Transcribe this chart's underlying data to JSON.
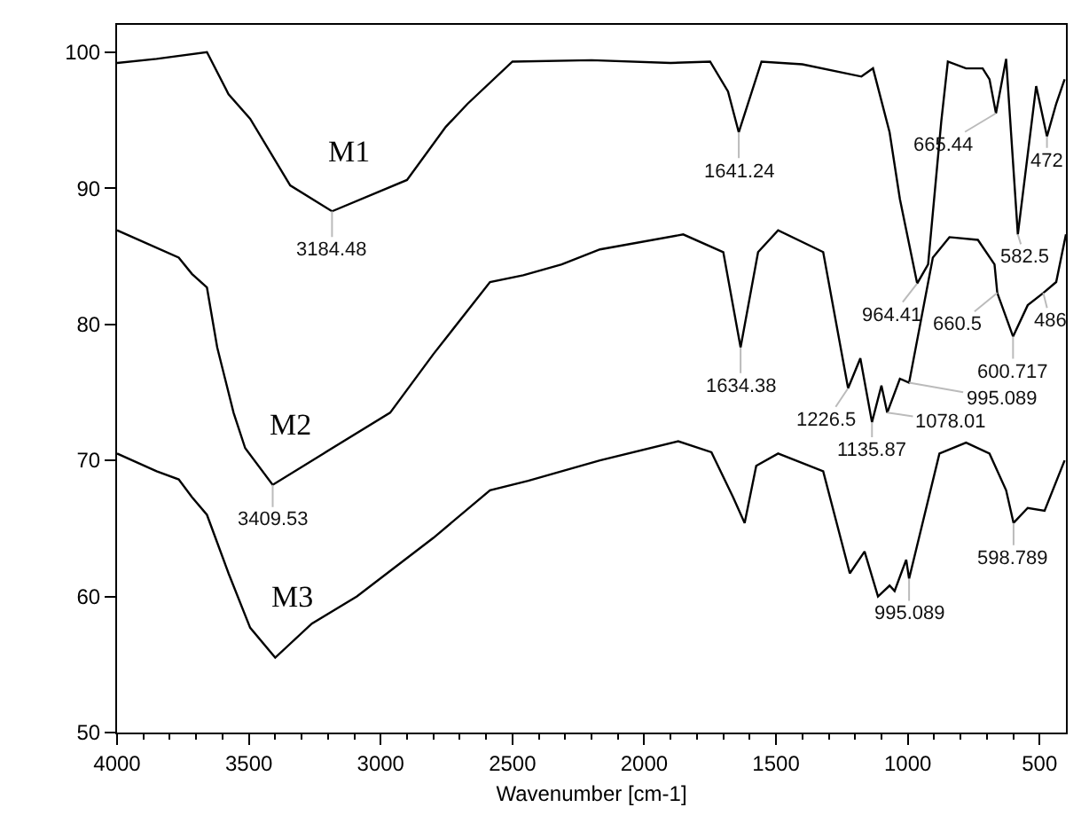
{
  "chart_data": {
    "type": "line",
    "xlabel": "Wavenumber [cm-1]",
    "xlim": [
      4000,
      400
    ],
    "ylim": [
      50,
      102
    ],
    "xticks": [
      4000,
      {
        "value": 3900,
        "label": null
      },
      {
        "value": 3800,
        "label": null
      },
      {
        "value": 3700,
        "label": null
      },
      {
        "value": 3600,
        "label": null
      },
      3500,
      {
        "value": 3400,
        "label": null
      },
      {
        "value": 3300,
        "label": null
      },
      {
        "value": 3200,
        "label": null
      },
      {
        "value": 3100,
        "label": null
      },
      3000,
      {
        "value": 2900,
        "label": null
      },
      {
        "value": 2800,
        "label": null
      },
      {
        "value": 2700,
        "label": null
      },
      {
        "value": 2600,
        "label": null
      },
      2500,
      {
        "value": 2400,
        "label": null
      },
      {
        "value": 2300,
        "label": null
      },
      {
        "value": 2200,
        "label": null
      },
      {
        "value": 2100,
        "label": null
      },
      2000,
      {
        "value": 1900,
        "label": null
      },
      {
        "value": 1800,
        "label": null
      },
      {
        "value": 1700,
        "label": null
      },
      {
        "value": 1600,
        "label": null
      },
      1500,
      {
        "value": 1400,
        "label": null
      },
      {
        "value": 1300,
        "label": null
      },
      {
        "value": 1200,
        "label": null
      },
      {
        "value": 1100,
        "label": null
      },
      1000,
      {
        "value": 900,
        "label": null
      },
      {
        "value": 800,
        "label": null
      },
      {
        "value": 700,
        "label": null
      },
      {
        "value": 600,
        "label": null
      },
      500
    ],
    "yticks": [
      50,
      60,
      70,
      80,
      90,
      100
    ],
    "legend": false,
    "marker": "none",
    "line_style": "solid",
    "series": [
      {
        "name": "M1",
        "color": "#000000",
        "x": [
          4000,
          3850,
          3659,
          3577,
          3495,
          3343,
          3184.48,
          2900,
          2753,
          2670,
          2500,
          2200,
          1900,
          1750,
          1682,
          1641.24,
          1555,
          1400,
          1176,
          1132,
          1069,
          1030,
          964.41,
          923,
          873,
          848,
          779,
          716,
          690,
          665.44,
          627,
          582.5,
          513,
          472,
          437,
          405
        ],
        "values": [
          99.2,
          99.5,
          100,
          96.9,
          95.1,
          90.2,
          88.3,
          90.6,
          94.5,
          96.2,
          99.3,
          99.4,
          99.2,
          99.3,
          97.1,
          94.1,
          99.3,
          99.1,
          98.2,
          98.8,
          94.1,
          89.2,
          83,
          84.4,
          94.9,
          99.3,
          98.8,
          98.8,
          98,
          95.5,
          99.5,
          86.6,
          97.5,
          93.8,
          96.2,
          98
        ]
      },
      {
        "name": "M2",
        "color": "#000000",
        "x": [
          4000,
          3766,
          3716,
          3659,
          3620,
          3558,
          3514,
          3409.53,
          3217,
          2964,
          2800,
          2585,
          2459,
          2313,
          2168,
          1852,
          1700,
          1634.38,
          1568,
          1492,
          1321,
          1226.5,
          1180,
          1135.87,
          1100,
          1078.01,
          1030,
          995.089,
          905,
          842,
          734,
          671,
          660.5,
          600.717,
          545,
          486,
          437,
          400
        ],
        "values": [
          86.9,
          84.9,
          83.7,
          82.7,
          78.3,
          73.5,
          70.9,
          68.2,
          70.5,
          73.5,
          77.8,
          83.1,
          83.6,
          84.4,
          85.5,
          86.6,
          85.3,
          78.3,
          85.3,
          86.9,
          85.3,
          75.3,
          77.5,
          72.8,
          75.5,
          73.5,
          76,
          75.7,
          84.9,
          86.4,
          86.2,
          84.4,
          82.3,
          79.1,
          81.4,
          82.3,
          83.1,
          86.6
        ]
      },
      {
        "name": "M3",
        "color": "#000000",
        "x": [
          4000,
          3850,
          3766,
          3716,
          3659,
          3577,
          3495,
          3400,
          3261,
          3090,
          2800,
          2585,
          2440,
          2313,
          2168,
          1871,
          1745,
          1663,
          1619,
          1575,
          1492,
          1321,
          1220,
          1164,
          1113,
          1069,
          1050,
          1006,
          995.089,
          880,
          779,
          690,
          627,
          598.789,
          545,
          481,
          405
        ],
        "values": [
          70.5,
          69.2,
          68.6,
          67.3,
          66,
          61.7,
          57.7,
          55.5,
          58,
          60,
          64.3,
          67.8,
          68.5,
          69.2,
          70,
          71.4,
          70.6,
          67.3,
          65.4,
          69.6,
          70.5,
          69.2,
          61.7,
          63.3,
          60,
          60.8,
          60.4,
          62.7,
          61.3,
          70.5,
          71.3,
          70.5,
          67.8,
          65.4,
          66.5,
          66.3,
          70
        ]
      }
    ],
    "annotations": [
      {
        "text": "3184.48",
        "x": 3184.48,
        "y": 88.3
      },
      {
        "text": "1641.24",
        "x": 1641.24,
        "y": 94.1
      },
      {
        "text": "665.44",
        "x": 665.44,
        "y": 95.5
      },
      {
        "text": "472",
        "x": 472,
        "y": 93.8
      },
      {
        "text": "964.41",
        "x": 964.41,
        "y": 83
      },
      {
        "text": "582.5",
        "x": 582.5,
        "y": 86.6
      },
      {
        "text": "660.5",
        "x": 660.5,
        "y": 82.3
      },
      {
        "text": "600.717",
        "x": 600.717,
        "y": 79.1
      },
      {
        "text": "486",
        "x": 486,
        "y": 82.3
      },
      {
        "text": "1634.38",
        "x": 1634.38,
        "y": 78.3
      },
      {
        "text": "1226.5",
        "x": 1226.5,
        "y": 75.3
      },
      {
        "text": "1135.87",
        "x": 1135.87,
        "y": 72.8
      },
      {
        "text": "1078.01",
        "x": 1078.01,
        "y": 73.5
      },
      {
        "text": "995.089",
        "x": 995.089,
        "y": 75.7
      },
      {
        "text": "3409.53",
        "x": 3409.53,
        "y": 68.2
      },
      {
        "text": "995.089",
        "x": 995.089,
        "y": 61.3
      },
      {
        "text": "598.789",
        "x": 598.789,
        "y": 65.4
      }
    ]
  }
}
